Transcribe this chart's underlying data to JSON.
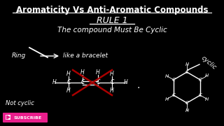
{
  "bg_color": "#000000",
  "title": "Aromaticity Vs Anti-Aromatic Compounds",
  "title_color": "#ffffff",
  "title_fontsize": 8.5,
  "rule_text": "RULE 1",
  "rule_color": "#ffffff",
  "rule_fontsize": 9,
  "subtitle": "The compound Must Be Cyclic",
  "subtitle_color": "#ffffff",
  "subtitle_fontsize": 7.5,
  "ring_label": "Ring",
  "ring_color": "#ffffff",
  "bracelet_text": "like a bracelet",
  "bracelet_color": "#ffffff",
  "not_cyclic_text": "Not cyclic",
  "not_cyclic_color": "#ffffff",
  "cyclic_text": "cyclic",
  "cyclic_color": "#ffffff",
  "subscribe_bg": "#e91e8c",
  "subscribe_color": "#ffffff",
  "chain_color": "#ffffff",
  "cross_color": "#aa0000",
  "ring_line_color": "#ffffff",
  "arrow_color": "#ffffff",
  "dot_text": ".",
  "figure_width": 3.2,
  "figure_height": 1.8,
  "dpi": 100
}
